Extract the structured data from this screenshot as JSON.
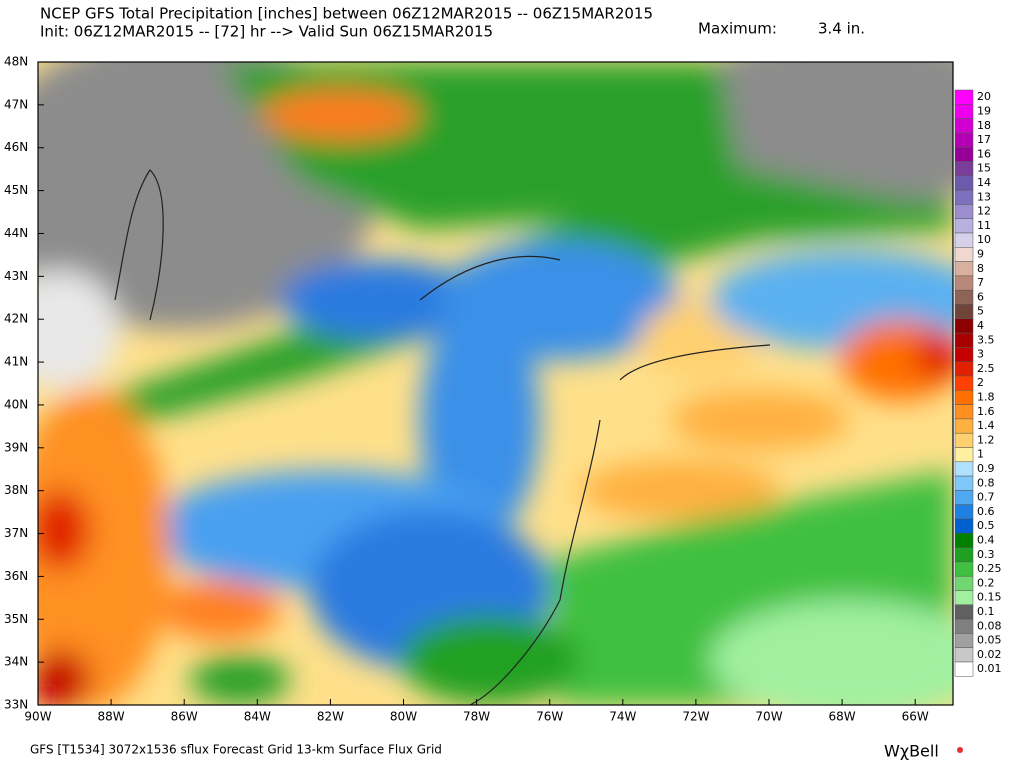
{
  "header": {
    "line1": "NCEP GFS Total Precipitation [inches] between 06Z12MAR2015 -- 06Z15MAR2015",
    "line2": "Init: 06Z12MAR2015 -- [72] hr --> Valid Sun 06Z15MAR2015",
    "maximum_label": "Maximum:",
    "maximum_value": "3.4 in."
  },
  "map": {
    "lat_labels": [
      "48N",
      "47N",
      "46N",
      "45N",
      "44N",
      "43N",
      "42N",
      "41N",
      "40N",
      "39N",
      "38N",
      "37N",
      "36N",
      "35N",
      "34N",
      "33N"
    ],
    "lon_labels": [
      "90W",
      "88W",
      "86W",
      "84W",
      "82W",
      "80W",
      "78W",
      "76W",
      "74W",
      "72W",
      "70W",
      "68W",
      "66W"
    ]
  },
  "colorbar": [
    {
      "label": "20",
      "color": "#ff00ff"
    },
    {
      "label": "19",
      "color": "#ee00ee"
    },
    {
      "label": "18",
      "color": "#d100d1"
    },
    {
      "label": "17",
      "color": "#b400b4"
    },
    {
      "label": "16",
      "color": "#960096"
    },
    {
      "label": "15",
      "color": "#7a3d99"
    },
    {
      "label": "14",
      "color": "#6c5bad"
    },
    {
      "label": "13",
      "color": "#7d70bd"
    },
    {
      "label": "12",
      "color": "#9b8fcf"
    },
    {
      "label": "11",
      "color": "#b8b0dd"
    },
    {
      "label": "10",
      "color": "#d6d0ea"
    },
    {
      "label": "9",
      "color": "#f0d8d0"
    },
    {
      "label": "8",
      "color": "#d9b0a0"
    },
    {
      "label": "7",
      "color": "#b98878"
    },
    {
      "label": "6",
      "color": "#8e6456"
    },
    {
      "label": "5",
      "color": "#6e4538"
    },
    {
      "label": "4",
      "color": "#8b0000"
    },
    {
      "label": "3.5",
      "color": "#a80000"
    },
    {
      "label": "3",
      "color": "#c40000"
    },
    {
      "label": "2.5",
      "color": "#e02000"
    },
    {
      "label": "2",
      "color": "#ff4000"
    },
    {
      "label": "1.8",
      "color": "#ff7000"
    },
    {
      "label": "1.6",
      "color": "#ff9020"
    },
    {
      "label": "1.4",
      "color": "#ffb040"
    },
    {
      "label": "1.2",
      "color": "#ffd070"
    },
    {
      "label": "1",
      "color": "#fff0a0"
    },
    {
      "label": "0.9",
      "color": "#b0e0ff"
    },
    {
      "label": "0.8",
      "color": "#80c8f8"
    },
    {
      "label": "0.7",
      "color": "#50a8f0"
    },
    {
      "label": "0.6",
      "color": "#2080e0"
    },
    {
      "label": "0.5",
      "color": "#0060d0"
    },
    {
      "label": "0.4",
      "color": "#008000"
    },
    {
      "label": "0.3",
      "color": "#20a020"
    },
    {
      "label": "0.25",
      "color": "#40c040"
    },
    {
      "label": "0.2",
      "color": "#70d870"
    },
    {
      "label": "0.15",
      "color": "#a0f0a0"
    },
    {
      "label": "0.1",
      "color": "#606060"
    },
    {
      "label": "0.08",
      "color": "#808080"
    },
    {
      "label": "0.05",
      "color": "#a0a0a0"
    },
    {
      "label": "0.02",
      "color": "#c8c8c8"
    },
    {
      "label": "0.01",
      "color": "#ffffff"
    }
  ],
  "footer": {
    "grid_info": "GFS [T1534] 3072x1536 sflux Forecast Grid 13-km Surface Flux Grid",
    "logo": "WχBell"
  }
}
